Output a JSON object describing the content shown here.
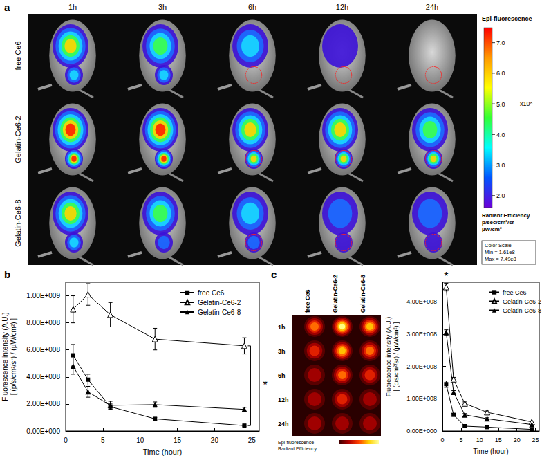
{
  "figure": {
    "panels": [
      "a",
      "b",
      "c"
    ]
  },
  "panel_a": {
    "columns": [
      "1h",
      "3h",
      "6h",
      "12h",
      "24h"
    ],
    "rows": [
      "free Ce6",
      "Gelatin-Ce6-2",
      "Gelatin-Ce6-8"
    ],
    "colorbar": {
      "title": "Epi-fluorescence",
      "range": [
        1.61,
        7.49
      ],
      "ticks": [
        {
          "value": 7,
          "label": "7.0"
        },
        {
          "value": 6,
          "label": "6.0"
        },
        {
          "value": 5,
          "label": "5.0"
        },
        {
          "value": 4,
          "label": "4.0"
        },
        {
          "value": 3,
          "label": "3.0"
        },
        {
          "value": 2,
          "label": "2.0"
        }
      ],
      "multiplier": "x10⁸",
      "unit_title": "Radiant Efficiency",
      "units": [
        "p/sec/cm²/sr",
        "µW/cm²"
      ],
      "scale_box": [
        "Color Scale",
        "Min = 1.61e8",
        "Max = 7.49e8"
      ]
    }
  },
  "panel_c_image": {
    "columns": [
      "free Ce6",
      "Gelatin-Ce6-2",
      "Gelatin-Ce6-8"
    ],
    "rows": [
      "1h",
      "3h",
      "6h",
      "12h",
      "24h"
    ],
    "colorbar_texts": [
      "Epi-fluorescence",
      "Radiant Efficiency"
    ]
  },
  "chart_data": [
    {
      "type": "line",
      "x_label": "Time (hour)",
      "y_label": [
        "Fluorescence intensity (A.U.)",
        "[ (p/s/cm²/sr) / (µW/cm²) ]"
      ],
      "x": [
        1,
        3,
        6,
        12,
        24
      ],
      "series": [
        {
          "name": "free Ce6",
          "color": "#000000",
          "marker": "square",
          "values": [
            560000000,
            380000000,
            180000000,
            90000000,
            40000000
          ],
          "errors": [
            80000000,
            40000000,
            20000000,
            10000000,
            5000000
          ]
        },
        {
          "name": "Gelatin-Ce6-2",
          "color": "#000000",
          "marker": "triangle-open",
          "values": [
            900000000,
            1010000000,
            860000000,
            680000000,
            630000000
          ],
          "errors": [
            100000000,
            80000000,
            90000000,
            80000000,
            60000000
          ]
        },
        {
          "name": "Gelatin-Ce6-8",
          "color": "#000000",
          "marker": "triangle",
          "values": [
            480000000,
            290000000,
            190000000,
            195000000,
            160000000
          ],
          "errors": [
            60000000,
            40000000,
            30000000,
            20000000,
            15000000
          ]
        }
      ],
      "xlim": [
        0,
        26
      ],
      "xticks": [
        0,
        5,
        10,
        15,
        20,
        25
      ],
      "ylim": [
        0,
        1100000000
      ],
      "yticks": [
        {
          "value": 0,
          "label": "0.00E+000"
        },
        {
          "value": 200000000,
          "label": "2.00E+008"
        },
        {
          "value": 400000000,
          "label": "4.00E+008"
        },
        {
          "value": 600000000,
          "label": "6.00E+008"
        },
        {
          "value": 800000000,
          "label": "8.00E+008"
        },
        {
          "value": 1000000000,
          "label": "1.00E+009"
        }
      ],
      "grid": false,
      "legend": "upper right",
      "annotations": [
        {
          "text": "*",
          "x": 26.8,
          "y": 340000000
        }
      ]
    },
    {
      "type": "line",
      "x_label": "Time (hour)",
      "y_label": [
        "Fluorescence intensity (A.U.)",
        "[ (p/s/cm²/sr) / (µW/cm²) ]"
      ],
      "x": [
        1,
        3,
        6,
        12,
        24
      ],
      "series": [
        {
          "name": "free Ce6",
          "color": "#000000",
          "marker": "square",
          "values": [
            145000000,
            50000000,
            15000000,
            12000000,
            5000000
          ],
          "errors": [
            10000000,
            4000000,
            2000000,
            2000000,
            1000000
          ]
        },
        {
          "name": "Gelatin-Ce6-2",
          "color": "#000000",
          "marker": "triangle-open",
          "values": [
            445000000,
            160000000,
            85000000,
            58000000,
            28000000
          ],
          "errors": [
            12000000,
            6000000,
            5000000,
            4000000,
            3000000
          ]
        },
        {
          "name": "Gelatin-Ce6-8",
          "color": "#000000",
          "marker": "triangle",
          "values": [
            305000000,
            120000000,
            50000000,
            38000000,
            20000000
          ],
          "errors": [
            8000000,
            5000000,
            4000000,
            3000000,
            2000000
          ]
        }
      ],
      "xlim": [
        0,
        26
      ],
      "xticks": [
        0,
        5,
        10,
        15,
        20,
        25
      ],
      "ylim": [
        0,
        460000000
      ],
      "yticks": [
        {
          "value": 0,
          "label": "0.00E+000"
        },
        {
          "value": 100000000,
          "label": "1.00E+008"
        },
        {
          "value": 200000000,
          "label": "2.00E+008"
        },
        {
          "value": 300000000,
          "label": "3.00E+008"
        },
        {
          "value": 400000000,
          "label": "4.00E+008"
        }
      ],
      "grid": false,
      "legend": "upper right",
      "annotations": [
        {
          "text": "*",
          "x": 1,
          "y": 462000000
        }
      ]
    }
  ]
}
